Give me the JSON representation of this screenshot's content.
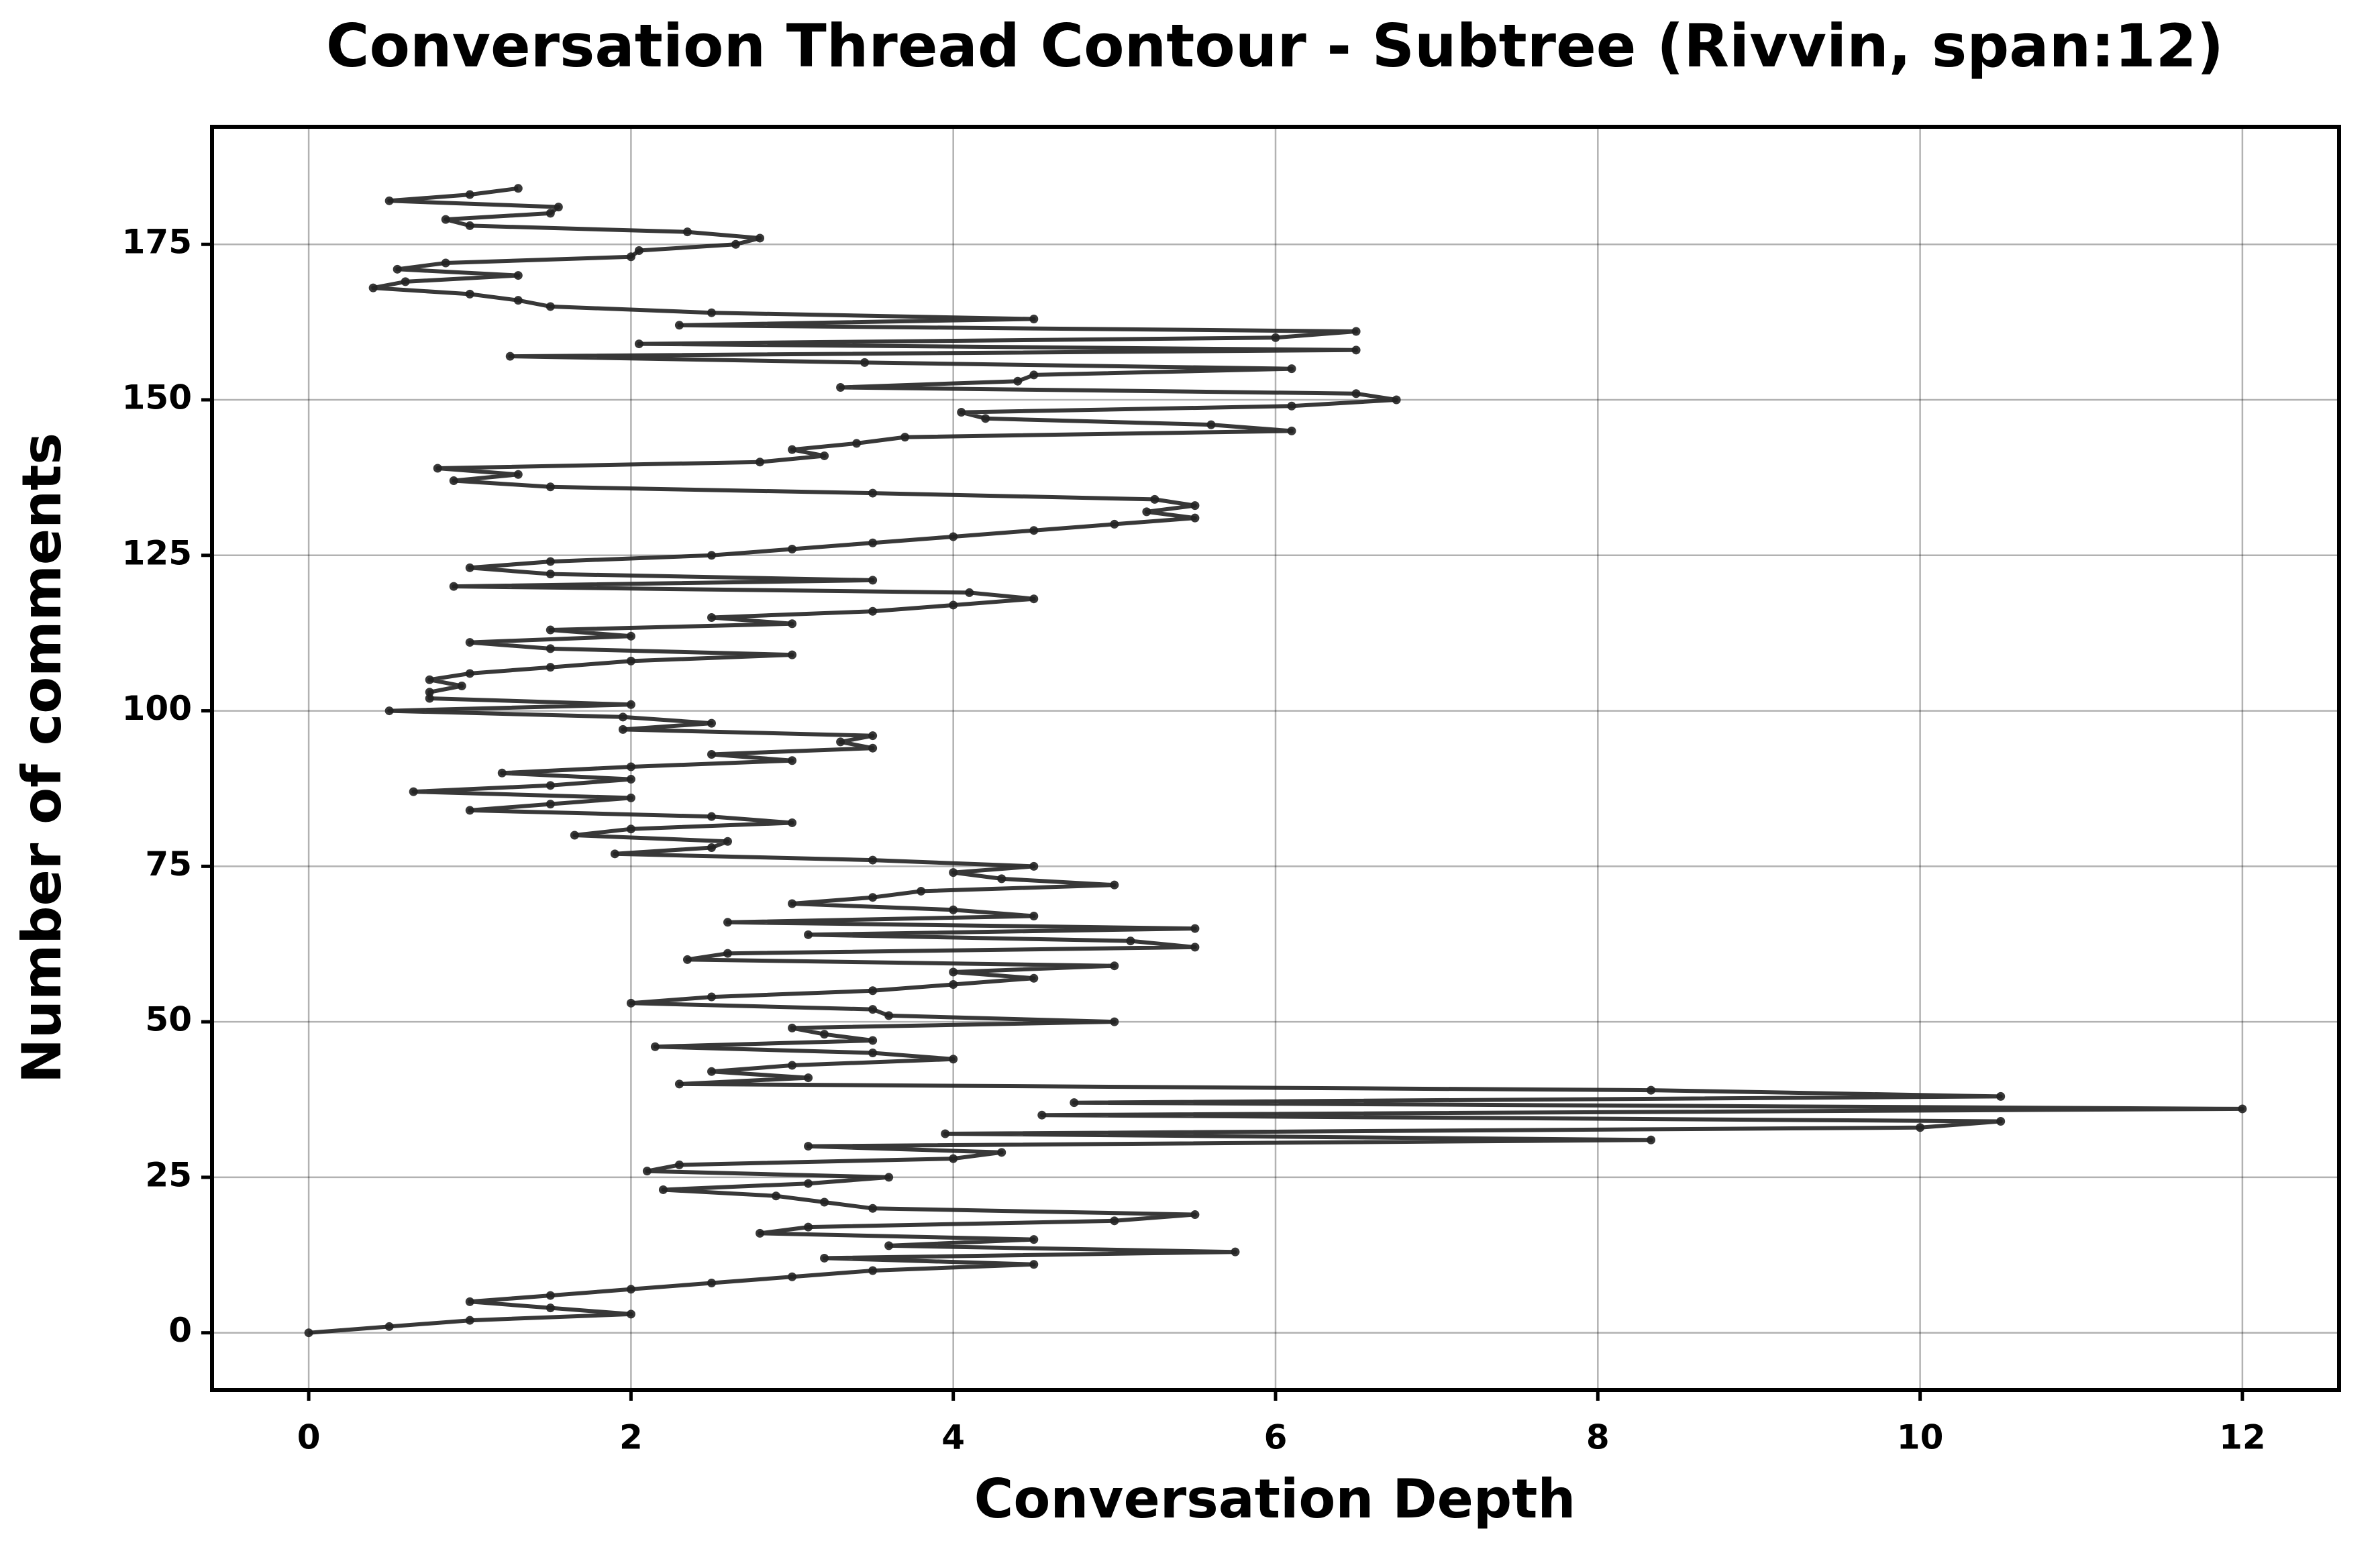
{
  "chart_data": {
    "type": "line",
    "title": "Conversation Thread Contour  - Subtree (Rivvin, span:12)",
    "x_label": "Conversation Depth",
    "y_label": "Number of comments",
    "color": "#222222",
    "grid": true,
    "xlim": [
      -0.6,
      12.6
    ],
    "ylim": [
      -9.2,
      193.9
    ],
    "xticks": [
      0,
      2,
      4,
      6,
      8,
      10,
      12
    ],
    "yticks": [
      0,
      25,
      50,
      75,
      100,
      125,
      150,
      175
    ],
    "x": [
      0,
      0.5,
      1,
      2,
      1.5,
      1,
      1.5,
      2,
      2.5,
      3,
      3.5,
      4.5,
      3.2,
      5.75,
      3.6,
      4.5,
      2.8,
      3.1,
      5,
      5.5,
      3.5,
      3.2,
      2.9,
      2.2,
      3.1,
      3.6,
      2.1,
      2.3,
      4,
      4.3,
      3.1,
      8.33,
      3.95,
      10,
      10.5,
      4.55,
      12,
      4.75,
      10.5,
      8.33,
      2.3,
      3.1,
      2.5,
      3,
      4,
      3.5,
      2.15,
      3.5,
      3.2,
      3,
      5,
      3.6,
      3.5,
      2,
      2.5,
      3.5,
      4,
      4.5,
      4,
      5,
      2.35,
      2.6,
      5.5,
      5.1,
      3.1,
      5.5,
      2.6,
      4.5,
      4,
      3,
      3.5,
      3.8,
      5,
      4.3,
      4,
      4.5,
      3.5,
      1.9,
      2.5,
      2.6,
      1.65,
      2,
      3,
      2.5,
      1,
      1.5,
      2,
      0.65,
      1.5,
      2,
      1.2,
      2,
      3,
      2.5,
      3.5,
      3.3,
      3.5,
      1.95,
      2.5,
      1.95,
      0.5,
      2,
      0.75,
      0.75,
      0.95,
      0.75,
      1,
      1.5,
      2,
      3,
      1.5,
      1,
      2,
      1.5,
      3,
      2.5,
      3.5,
      4,
      4.5,
      4.1,
      0.9,
      3.5,
      1.5,
      1,
      1.5,
      2.5,
      3,
      3.5,
      4,
      4.5,
      5,
      5.5,
      5.2,
      5.5,
      5.25,
      3.5,
      1.5,
      0.9,
      1.3,
      0.8,
      2.8,
      3.2,
      3,
      3.4,
      3.7,
      6.1,
      5.6,
      4.2,
      4.05,
      6.1,
      6.75,
      6.5,
      3.3,
      4.4,
      4.5,
      6.1,
      3.45,
      1.25,
      6.5,
      2.05,
      6,
      6.5,
      2.3,
      4.5,
      2.5,
      1.5,
      1.3,
      1,
      0.4,
      0.6,
      1.3,
      0.55,
      0.85,
      2,
      2.05,
      2.65,
      2.8,
      2.35,
      1,
      0.85,
      1.5,
      1.55,
      0.5,
      1,
      1.3
    ],
    "values": [
      0,
      1,
      2,
      3,
      4,
      5,
      6,
      7,
      8,
      9,
      10,
      11,
      12,
      13,
      14,
      15,
      16,
      17,
      18,
      19,
      20,
      21,
      22,
      23,
      24,
      25,
      26,
      27,
      28,
      29,
      30,
      31,
      32,
      33,
      34,
      35,
      36,
      37,
      38,
      39,
      40,
      41,
      42,
      43,
      44,
      45,
      46,
      47,
      48,
      49,
      50,
      51,
      52,
      53,
      54,
      55,
      56,
      57,
      58,
      59,
      60,
      61,
      62,
      63,
      64,
      65,
      66,
      67,
      68,
      69,
      70,
      71,
      72,
      73,
      74,
      75,
      76,
      77,
      78,
      79,
      80,
      81,
      82,
      83,
      84,
      85,
      86,
      87,
      88,
      89,
      90,
      91,
      92,
      93,
      94,
      95,
      96,
      97,
      98,
      99,
      100,
      101,
      102,
      103,
      104,
      105,
      106,
      107,
      108,
      109,
      110,
      111,
      112,
      113,
      114,
      115,
      116,
      117,
      118,
      119,
      120,
      121,
      122,
      123,
      124,
      125,
      126,
      127,
      128,
      129,
      130,
      131,
      132,
      133,
      134,
      135,
      136,
      137,
      138,
      139,
      140,
      141,
      142,
      143,
      144,
      145,
      146,
      147,
      148,
      149,
      150,
      151,
      152,
      153,
      154,
      155,
      156,
      157,
      158,
      159,
      160,
      161,
      162,
      163,
      164,
      165,
      166,
      167,
      168,
      169,
      170,
      171,
      172,
      173,
      174,
      175,
      176,
      177,
      178,
      179,
      180,
      181,
      182,
      183,
      184
    ]
  }
}
